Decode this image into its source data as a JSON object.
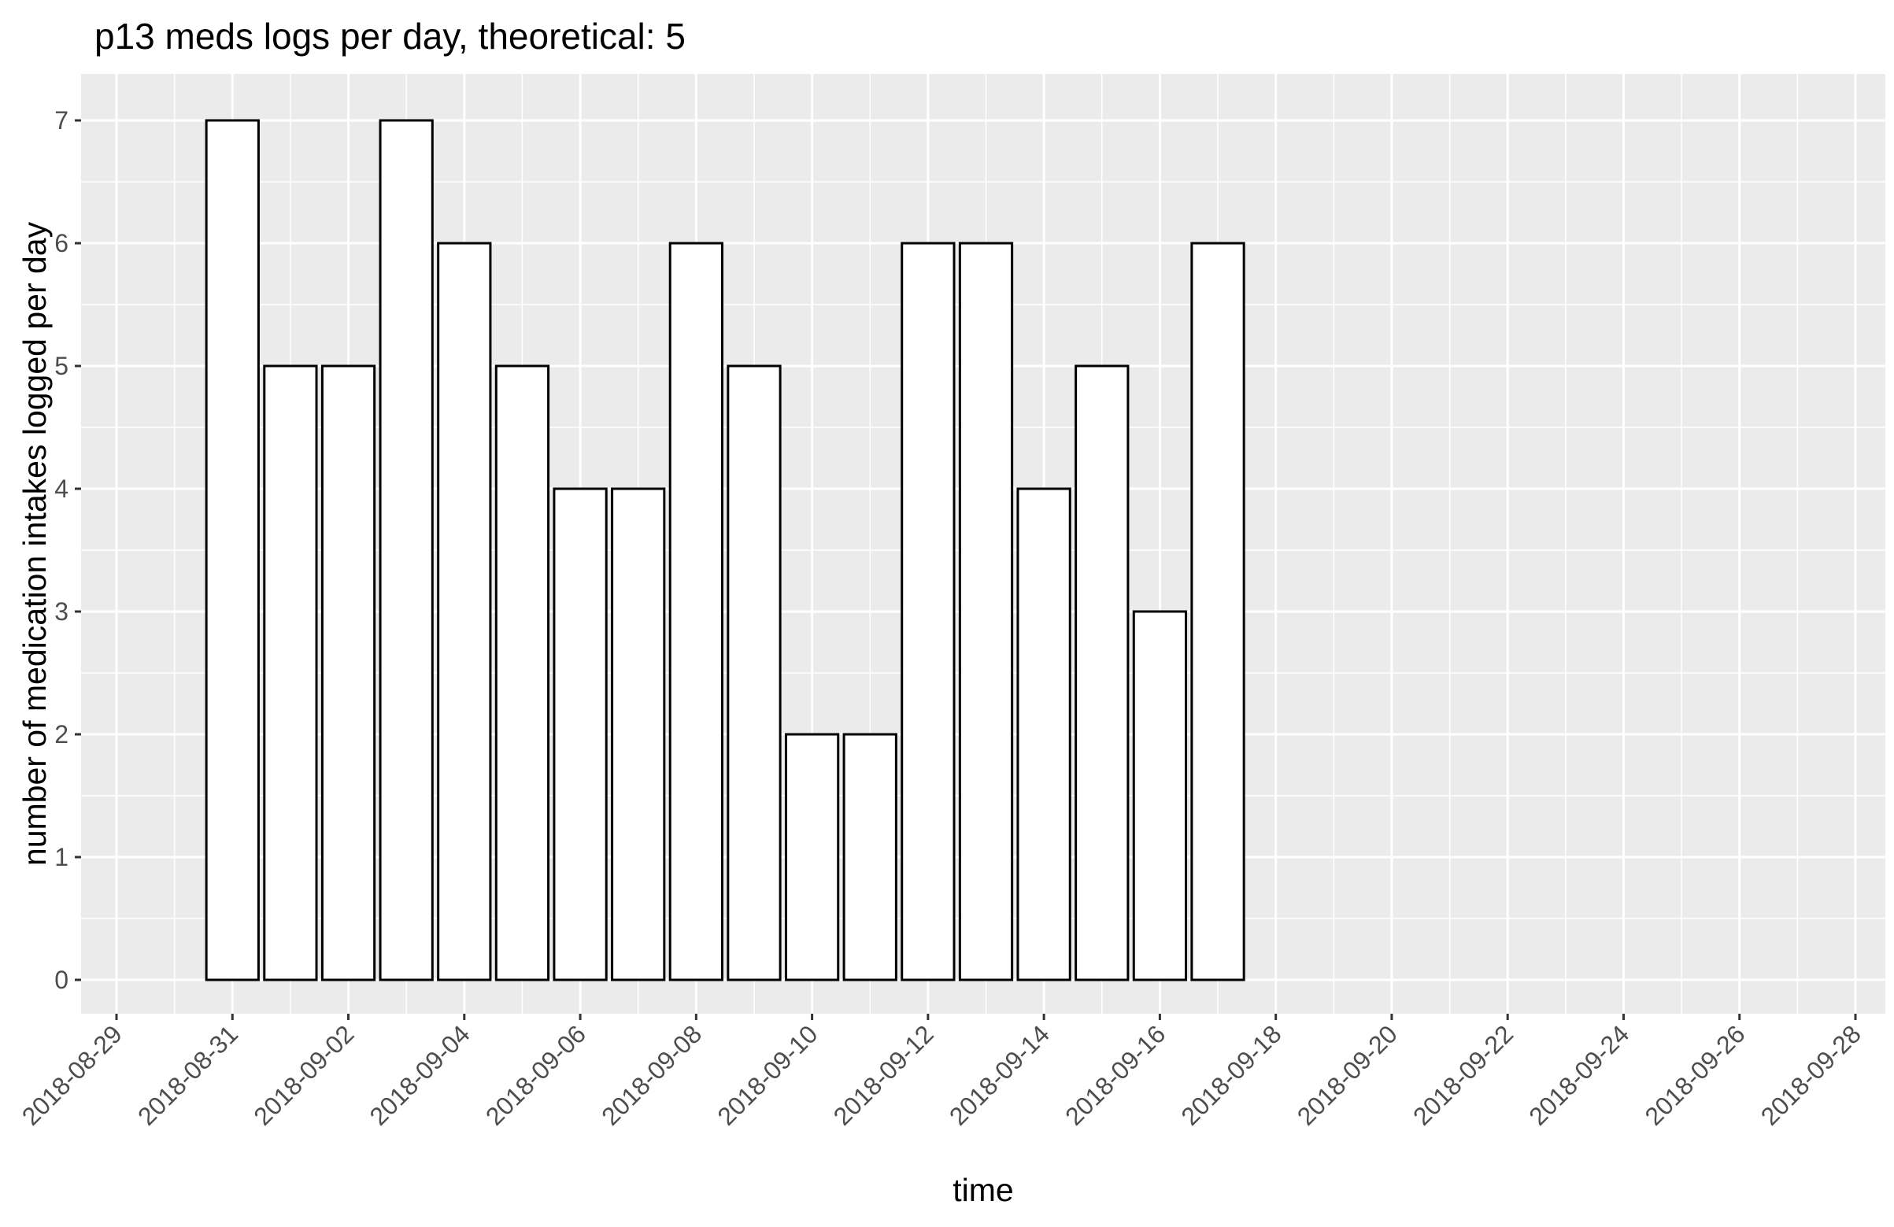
{
  "chart_data": {
    "type": "bar",
    "title": "p13 meds logs per day, theoretical: 5",
    "xlabel": "time",
    "ylabel": "number of medication intakes logged per day",
    "x": [
      "2018-08-31",
      "2018-09-01",
      "2018-09-02",
      "2018-09-03",
      "2018-09-04",
      "2018-09-05",
      "2018-09-06",
      "2018-09-07",
      "2018-09-08",
      "2018-09-09",
      "2018-09-10",
      "2018-09-11",
      "2018-09-12",
      "2018-09-13",
      "2018-09-14",
      "2018-09-15",
      "2018-09-16",
      "2018-09-17"
    ],
    "values": [
      7,
      5,
      5,
      7,
      6,
      5,
      4,
      4,
      6,
      5,
      2,
      2,
      6,
      6,
      4,
      5,
      3,
      6
    ],
    "xlim": [
      "2018-08-28",
      "2018-09-29"
    ],
    "ylim": [
      0,
      7
    ],
    "yticks": [
      0,
      1,
      2,
      3,
      4,
      5,
      6,
      7
    ],
    "xticks": [
      "2018-08-29",
      "2018-08-31",
      "2018-09-02",
      "2018-09-04",
      "2018-09-06",
      "2018-09-08",
      "2018-09-10",
      "2018-09-12",
      "2018-09-14",
      "2018-09-16",
      "2018-09-18",
      "2018-09-20",
      "2018-09-22",
      "2018-09-24",
      "2018-09-26",
      "2018-09-28"
    ],
    "grid": true,
    "colors": {
      "panel": "#ebebeb",
      "grid": "#ffffff",
      "bar_fill": "#ffffff",
      "bar_stroke": "#000000",
      "tick_text": "#4d4d4d",
      "tick_mark": "#333333"
    }
  }
}
